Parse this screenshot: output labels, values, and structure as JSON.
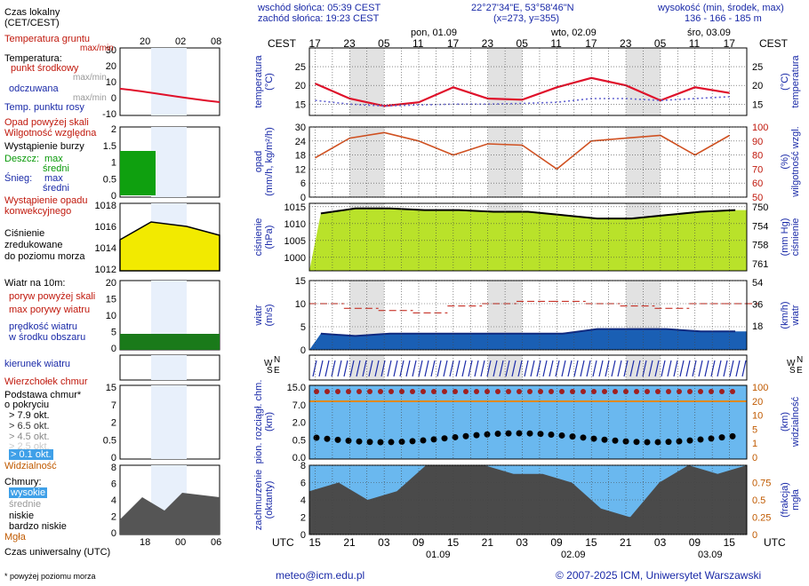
{
  "header": {
    "sunrise": "wschód słońca: 05:39 CEST",
    "sunset": "zachód słońca: 19:23 CEST",
    "coords": "22°27'34\"E, 53°58'46\"N",
    "grid": "(x=273,  y=355)",
    "height_label": "wysokość (min, środek, max)",
    "height_values": "136 - 166 - 185 m"
  },
  "top_axis": {
    "tz_left": "CEST",
    "tz_right": "CEST",
    "hours": [
      "17",
      "23",
      "05",
      "11",
      "17",
      "23",
      "05",
      "11",
      "17",
      "23",
      "05",
      "11",
      "17"
    ],
    "days": [
      "pon, 01.09",
      "wto, 02.09",
      "śro, 03.09"
    ]
  },
  "bottom_axis": {
    "tz_left": "UTC",
    "tz_right": "UTC",
    "hours": [
      "15",
      "21",
      "03",
      "09",
      "15",
      "21",
      "03",
      "09",
      "15",
      "21",
      "03",
      "09",
      "15"
    ],
    "days": [
      "01.09",
      "02.09",
      "03.09"
    ]
  },
  "legend": {
    "local_time": "Czas lokalny",
    "local_time_tz": "(CET/CEST)",
    "local_hours": [
      "20",
      "02",
      "08"
    ],
    "utc_time": "Czas uniwersalny (UTC)",
    "utc_hours": [
      "18",
      "00",
      "06"
    ],
    "temp_ground": "Temperatura gruntu",
    "max_min": "max/min",
    "temperature": "Temperatura:",
    "mid_point": "punkt środkowy",
    "max_min2": "max/min",
    "perceived": "odczuwana",
    "max_min3": "max/min",
    "dew_point": "Temp. punktu rosy",
    "rain_above": "Opad powyżej skali",
    "humidity": "Wilgotność względna",
    "storm": "Wystąpienie burzy",
    "rain": "Deszcz:",
    "max": "max",
    "mid": "średni",
    "snow": "Śnieg:",
    "max2": "max",
    "mid2": "średni",
    "conv": "Wystąpienie opadu",
    "conv2": "konwekcyjnego",
    "pressure1": "Ciśnienie",
    "pressure2": "zredukowane",
    "pressure3": "do poziomu morza",
    "wind": "Wiatr na 10m:",
    "gust_above": "poryw powyżej skali",
    "gust_max": "max porywy wiatru",
    "wind_mid1": "prędkość wiatru",
    "wind_mid2": "w środku obszaru",
    "wind_dir": "kierunek wiatru",
    "cloud_top": "Wierzchołek chmur",
    "cloud_base1": "Podstawa chmur*",
    "cloud_base2": "o pokryciu",
    "okt": [
      "> 7.9 okt.",
      "> 6.5 okt.",
      "> 4.5 okt.",
      "> 2.5 okt.",
      "> 0.1 okt."
    ],
    "visibility": "Widzialność",
    "clouds": "Chmury:",
    "high": "wysokie",
    "middle": "średnie",
    "low": "niskie",
    "very_low": "bardzo niskie",
    "fog": "Mgła",
    "footnote": "* powyżej poziomu morza"
  },
  "panel_labels": {
    "temp_l": "temperatura",
    "temp_l2": "(°C)",
    "temp_r": "temperatura",
    "temp_r2": "(°C)",
    "rain_l": "opad",
    "rain_l2": "(mm/h, kg/m²/h)",
    "rain_r": "wilgotność wzgl.",
    "rain_r2": "(%)",
    "pres_l": "ciśnienie",
    "pres_l2": "(hPa)",
    "pres_r": "ciśnienie",
    "pres_r2": "(mm Hg)",
    "wind_l": "wiatr",
    "wind_l2": "(m/s)",
    "wind_r": "wiatr",
    "wind_r2": "(km/h)",
    "cloud_l": "pion. rozciągł. chm.",
    "cloud_l2": "(km)",
    "cloud_r": "widzialność",
    "cloud_r2": "(km)",
    "cc_l": "zachmurzenie",
    "cc_l2": "(oktanty)",
    "cc_r": "mgła",
    "cc_r2": "(frakcja)",
    "compass_n": "N",
    "compass_w": "W",
    "compass_e": "E",
    "compass_s": "S"
  },
  "footer": {
    "email": "meteo@icm.edu.pl",
    "copyright": "© 2007-2025 ICM, Uniwersytet Warszawski"
  },
  "chart_data": [
    {
      "type": "line",
      "name": "temperature",
      "x_hours_from_start": [
        0,
        6,
        12,
        18,
        24,
        30,
        36,
        42,
        48,
        54,
        60,
        66,
        72
      ],
      "ylim": [
        12,
        30
      ],
      "ticks_left": [
        15,
        20,
        25
      ],
      "ticks_right": [
        15,
        20,
        25
      ],
      "series": [
        {
          "values": [
            20.5,
            16.5,
            14.5,
            15.5,
            19.5,
            16.5,
            16.2,
            19.5,
            22,
            20,
            16,
            19.5,
            18
          ]
        },
        {
          "values": [
            16,
            15,
            14.5,
            14.8,
            15,
            15,
            15.2,
            15.5,
            16.5,
            16.5,
            16,
            16.5,
            17
          ]
        }
      ]
    },
    {
      "type": "line",
      "name": "precipitation_humidity",
      "ylim_left": [
        0,
        30
      ],
      "ticks_left": [
        0,
        6,
        12,
        18,
        24,
        30
      ],
      "ylim_right": [
        50,
        100
      ],
      "ticks_right": [
        50,
        60,
        70,
        80,
        90,
        100
      ],
      "series": [
        {
          "values": [
            78,
            92,
            96,
            90,
            80,
            88,
            87,
            70,
            90,
            92,
            94,
            80,
            94
          ]
        }
      ]
    },
    {
      "type": "area",
      "name": "pressure",
      "ylim_left": [
        996,
        1016
      ],
      "ticks_left": [
        1000,
        1005,
        1010,
        1015
      ],
      "ticks_right": [
        750,
        754,
        758,
        761
      ],
      "series": [
        {
          "values": [
            1013,
            1014.5,
            1014.5,
            1014,
            1014,
            1013.5,
            1013.5,
            1012.5,
            1011.5,
            1011.5,
            1012.5,
            1013.5,
            1014
          ]
        }
      ]
    },
    {
      "type": "line",
      "name": "wind",
      "ylim_left": [
        0,
        15
      ],
      "ticks_left": [
        0,
        5,
        10,
        15
      ],
      "ticks_right": [
        18,
        36,
        54
      ],
      "series": [
        {
          "values": [
            3.5,
            3,
            3.5,
            3.5,
            3.5,
            3.5,
            3.5,
            3.5,
            4.5,
            4.5,
            4.5,
            4,
            4
          ]
        },
        {
          "values": [
            10,
            9,
            8.5,
            8,
            9.5,
            10,
            10.5,
            10.5,
            10,
            9.5,
            9,
            10,
            10
          ]
        }
      ]
    },
    {
      "type": "scatter",
      "name": "clouds_visibility",
      "ylim_left": [
        0,
        15
      ],
      "ticks_left": [
        0.0,
        0.5,
        2.0,
        7.0,
        15.0
      ],
      "ticks_right": [
        0,
        1,
        5,
        10,
        20,
        100
      ]
    },
    {
      "type": "area",
      "name": "cloud_cover",
      "ylim_left": [
        0,
        8
      ],
      "ticks_left": [
        0,
        2,
        4,
        6,
        8
      ],
      "ticks_right": [
        0,
        0.25,
        0.5,
        0.75
      ]
    }
  ]
}
